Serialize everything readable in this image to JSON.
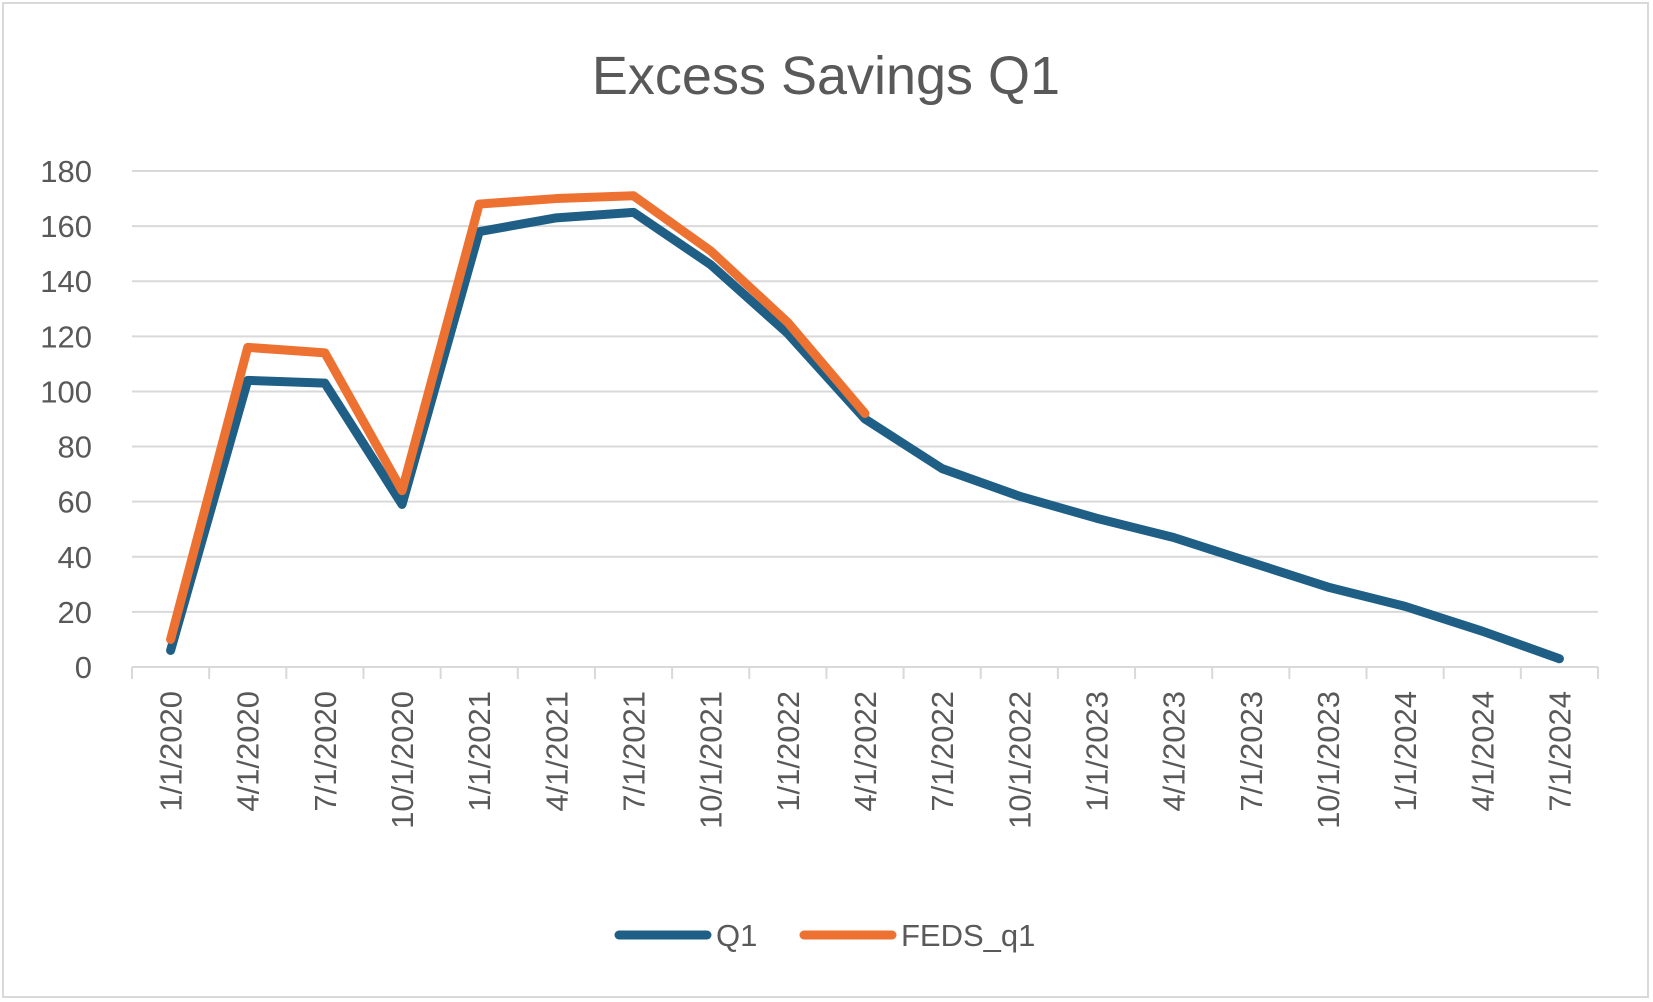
{
  "chart_data": {
    "type": "line",
    "title": "Excess Savings Q1",
    "xlabel": "",
    "ylabel": "",
    "ylim": [
      0,
      180
    ],
    "yticks": [
      "0",
      "20",
      "40",
      "60",
      "80",
      "100",
      "120",
      "140",
      "160",
      "180"
    ],
    "categories": [
      "1/1/2020",
      "4/1/2020",
      "7/1/2020",
      "10/1/2020",
      "1/1/2021",
      "4/1/2021",
      "7/1/2021",
      "10/1/2021",
      "1/1/2022",
      "4/1/2022",
      "7/1/2022",
      "10/1/2022",
      "1/1/2023",
      "4/1/2023",
      "7/1/2023",
      "10/1/2023",
      "1/1/2024",
      "4/1/2024",
      "7/1/2024"
    ],
    "series": [
      {
        "name": "Q1",
        "color": "#1f5f86",
        "values": [
          6,
          104,
          103,
          59,
          158,
          163,
          165,
          146,
          121,
          90,
          72,
          62,
          54,
          47,
          38,
          29,
          22,
          13,
          3
        ]
      },
      {
        "name": "FEDS_q1",
        "color": "#ed7232",
        "values": [
          10,
          116,
          114,
          64,
          168,
          170,
          171,
          151,
          125,
          92,
          null,
          null,
          null,
          null,
          null,
          null,
          null,
          null,
          null
        ]
      }
    ],
    "grid": true,
    "legend": "bottom"
  }
}
